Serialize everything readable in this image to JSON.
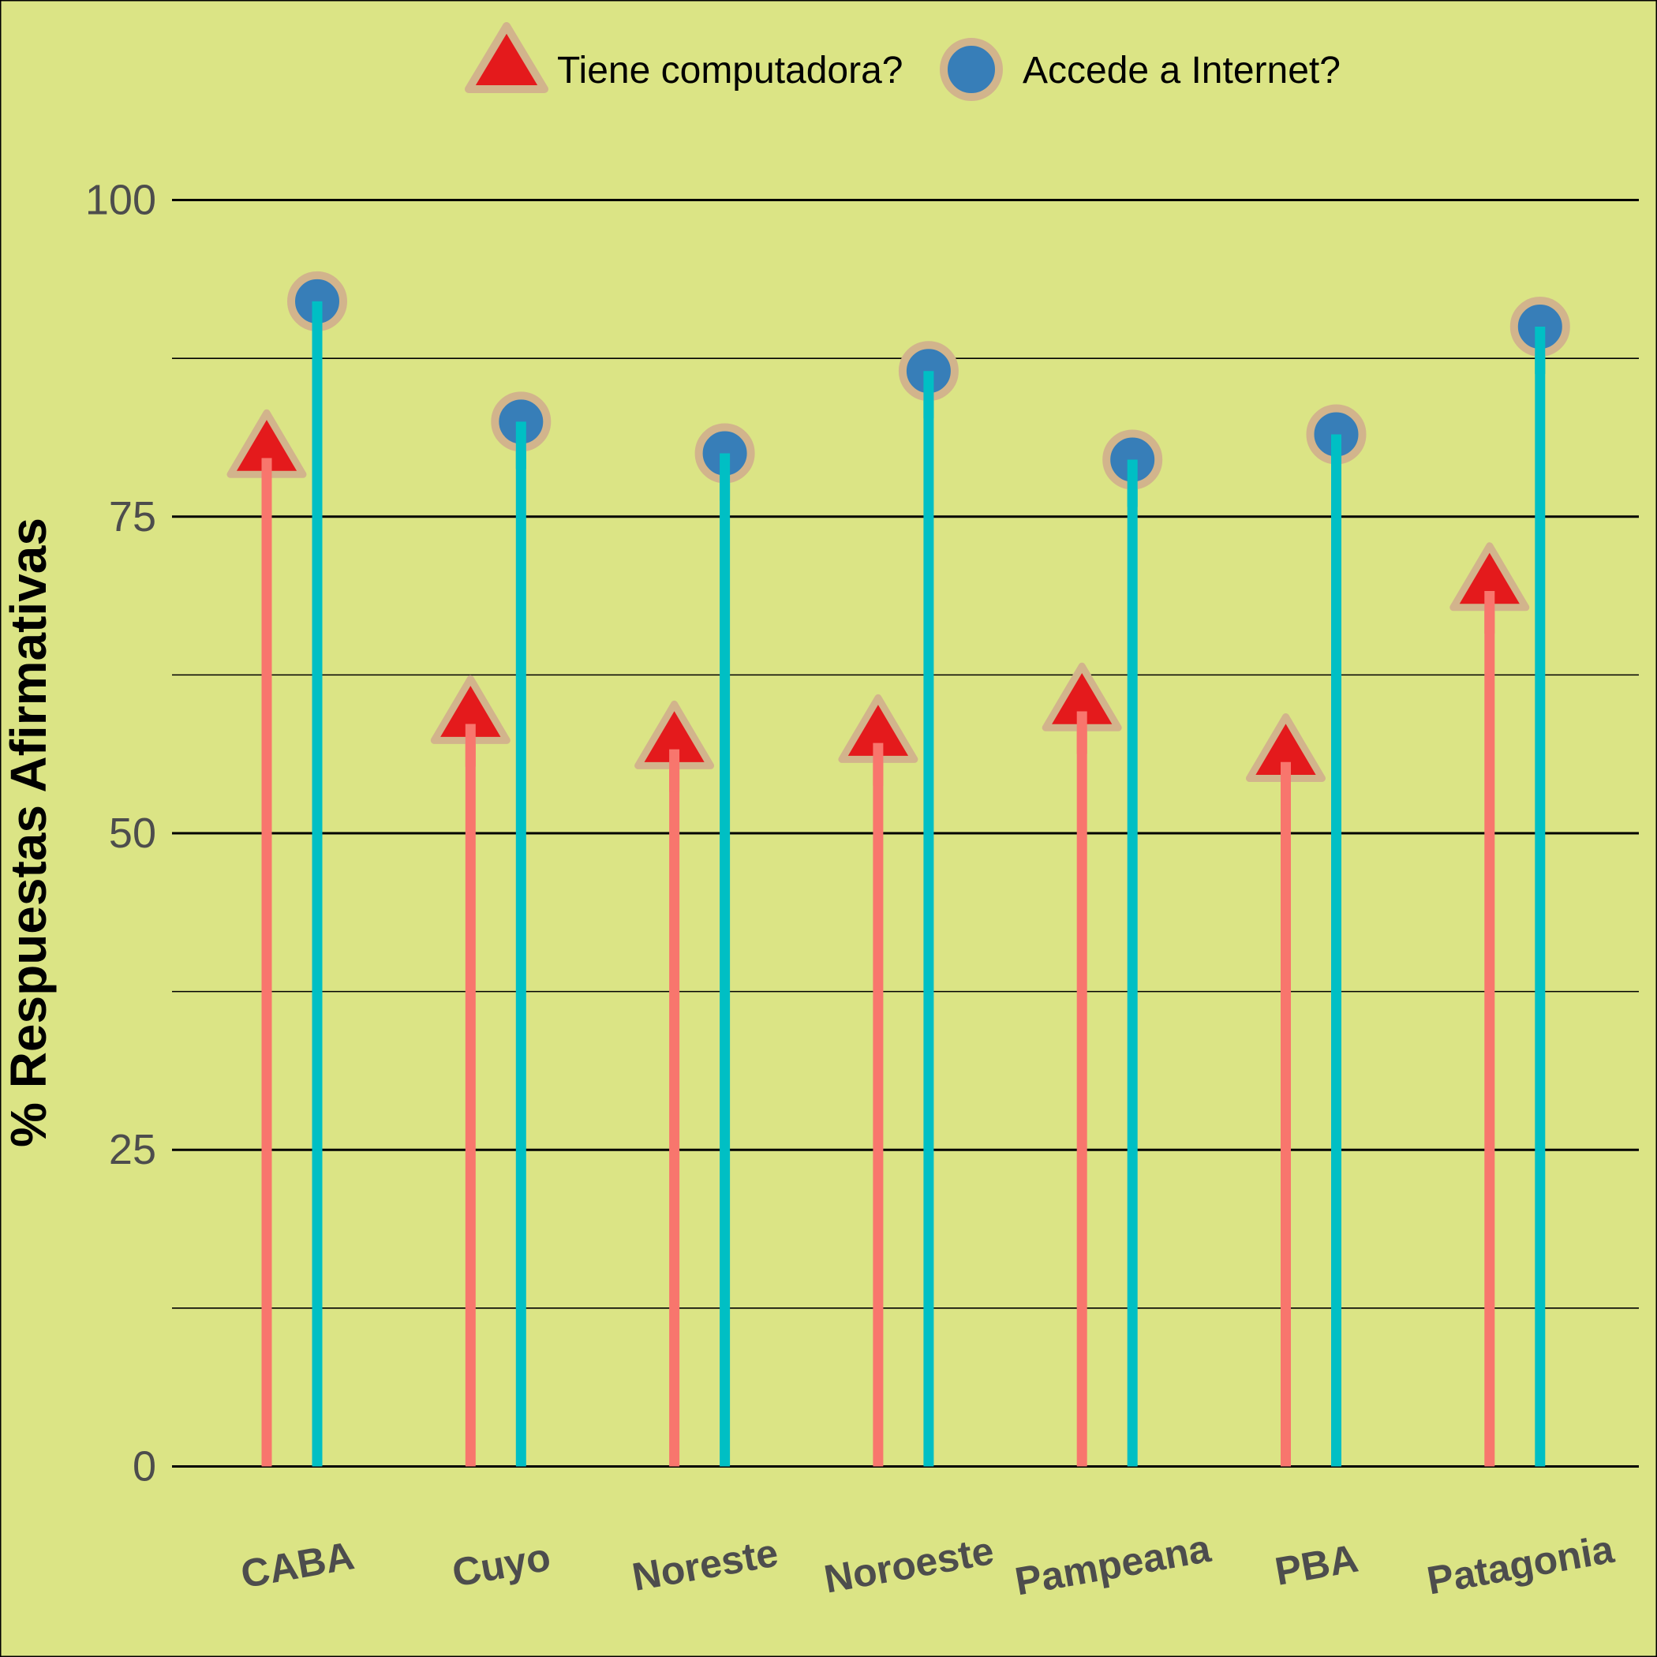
{
  "chart_data": {
    "type": "lollipop",
    "title": "",
    "xlabel": "",
    "ylabel": "% Respuestas Afirmativas",
    "ylim": [
      -11,
      111
    ],
    "yticks": [
      0,
      25,
      50,
      75,
      100
    ],
    "ytick_labels": [
      "0",
      "25",
      "50",
      "75",
      "100"
    ],
    "grid": true,
    "legend_position": "top",
    "categories": [
      "CABA",
      "Cuyo",
      "Noreste",
      "Noroeste",
      "Pampeana",
      "PBA",
      "Patagonia"
    ],
    "series": [
      {
        "name": "Tiene computadora?",
        "marker": "triangle",
        "stem_color": "#f8766d",
        "fill_color": "#e41a1c",
        "edge_color": "#d2b48c",
        "values": [
          80,
          59,
          57,
          57.5,
          60,
          56,
          69.5
        ]
      },
      {
        "name": "Accede a Internet?",
        "marker": "circle",
        "stem_color": "#00bfc4",
        "fill_color": "#377eb8",
        "edge_color": "#d2b48c",
        "values": [
          92,
          82.5,
          80,
          86.5,
          79.5,
          81.5,
          90
        ]
      }
    ],
    "colors": {
      "background": "#dbe485",
      "gridline": "#000000",
      "axis_text": "#4d4d4d",
      "title_text": "#000000"
    }
  }
}
